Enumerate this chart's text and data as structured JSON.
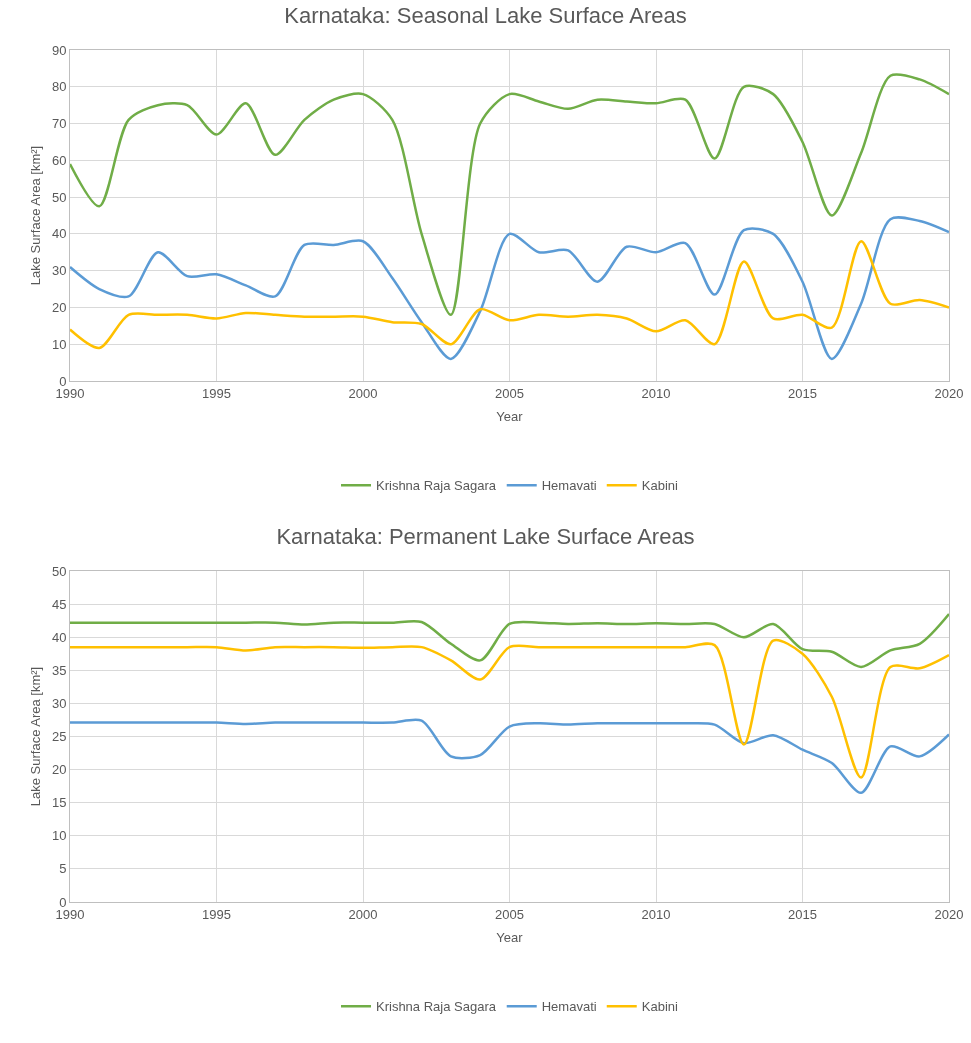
{
  "chart_data": [
    {
      "type": "line",
      "title": "Karnataka: Seasonal Lake Surface Areas",
      "xlabel": "Year",
      "ylabel": "Lake Surface Area [km²]",
      "x": [
        1990,
        1991,
        1992,
        1993,
        1994,
        1995,
        1996,
        1997,
        1998,
        1999,
        2000,
        2001,
        2002,
        2003,
        2004,
        2005,
        2006,
        2007,
        2008,
        2009,
        2010,
        2011,
        2012,
        2013,
        2014,
        2015,
        2016,
        2017,
        2018,
        2019,
        2020
      ],
      "series": [
        {
          "name": "Krishna Raja Sagara",
          "color": "#70ad47",
          "values": [
            59,
            47.5,
            71,
            75,
            75,
            67,
            75.5,
            61.5,
            71,
            76.5,
            78,
            71,
            40,
            18,
            70,
            78,
            76,
            74,
            76.5,
            76,
            75.5,
            76.5,
            60.5,
            80,
            78,
            65,
            45,
            62,
            83,
            82,
            78
          ]
        },
        {
          "name": "Hemavati",
          "color": "#5b9bd5",
          "values": [
            31,
            25,
            23,
            35,
            28.5,
            29,
            26,
            23,
            37,
            37,
            38,
            28,
            16,
            6,
            19,
            40,
            35,
            35.5,
            27,
            36.5,
            35,
            37.5,
            23.5,
            41,
            40,
            27,
            6,
            21,
            44,
            43.5,
            40.5
          ]
        },
        {
          "name": "Kabini",
          "color": "#ffc000",
          "values": [
            14,
            9,
            18,
            18,
            18,
            17,
            18.5,
            18,
            17.5,
            17.5,
            17.5,
            16,
            15.5,
            10,
            19.5,
            16.5,
            18,
            17.5,
            18,
            17,
            13.5,
            16.5,
            10,
            32.5,
            17,
            18,
            14.5,
            38,
            21,
            22,
            20
          ]
        }
      ],
      "xlim": [
        1990,
        2020
      ],
      "xticks": [
        1990,
        1995,
        2000,
        2005,
        2010,
        2015,
        2020
      ],
      "ylim": [
        0,
        90
      ],
      "yticks": [
        0,
        10,
        20,
        30,
        40,
        50,
        60,
        70,
        80,
        90
      ],
      "grid": true,
      "legend": "bottom",
      "marker": "none",
      "line_style": "solid"
    },
    {
      "type": "line",
      "title": "Karnataka: Permanent Lake Surface Areas",
      "xlabel": "Year",
      "ylabel": "Lake Surface Area [km²]",
      "x": [
        1990,
        1991,
        1992,
        1993,
        1994,
        1995,
        1996,
        1997,
        1998,
        1999,
        2000,
        2001,
        2002,
        2003,
        2004,
        2005,
        2006,
        2007,
        2008,
        2009,
        2010,
        2011,
        2012,
        2013,
        2014,
        2015,
        2016,
        2017,
        2018,
        2019,
        2020
      ],
      "series": [
        {
          "name": "Krishna Raja Sagara",
          "color": "#70ad47",
          "values": [
            42.2,
            42.2,
            42.2,
            42.2,
            42.2,
            42.2,
            42.2,
            42.2,
            41.9,
            42.2,
            42.2,
            42.2,
            42.3,
            39,
            36.5,
            42,
            42.2,
            42,
            42.1,
            42,
            42.1,
            42,
            42,
            40,
            42,
            38.2,
            37.8,
            35.5,
            38,
            39,
            43.5
          ]
        },
        {
          "name": "Hemavati",
          "color": "#5b9bd5",
          "values": [
            27.1,
            27.1,
            27.1,
            27.1,
            27.1,
            27.1,
            26.9,
            27.1,
            27.1,
            27.1,
            27.1,
            27.1,
            27.4,
            22,
            22.2,
            26.5,
            27,
            26.8,
            27,
            27,
            27,
            27,
            26.8,
            24,
            25.2,
            23,
            21,
            16.5,
            23.5,
            22,
            25.3
          ]
        },
        {
          "name": "Kabini",
          "color": "#ffc000",
          "values": [
            38.5,
            38.5,
            38.5,
            38.5,
            38.5,
            38.5,
            38,
            38.5,
            38.5,
            38.5,
            38.4,
            38.5,
            38.5,
            36.5,
            33.6,
            38.5,
            38.5,
            38.5,
            38.5,
            38.5,
            38.5,
            38.5,
            38.8,
            23.8,
            39.5,
            37.5,
            31,
            18.8,
            35.5,
            35.3,
            37.3
          ]
        }
      ],
      "xlim": [
        1990,
        2020
      ],
      "xticks": [
        1990,
        1995,
        2000,
        2005,
        2010,
        2015,
        2020
      ],
      "ylim": [
        0,
        50
      ],
      "yticks": [
        0,
        5,
        10,
        15,
        20,
        25,
        30,
        35,
        40,
        45,
        50
      ],
      "grid": true,
      "legend": "bottom",
      "marker": "none",
      "line_style": "solid"
    }
  ]
}
